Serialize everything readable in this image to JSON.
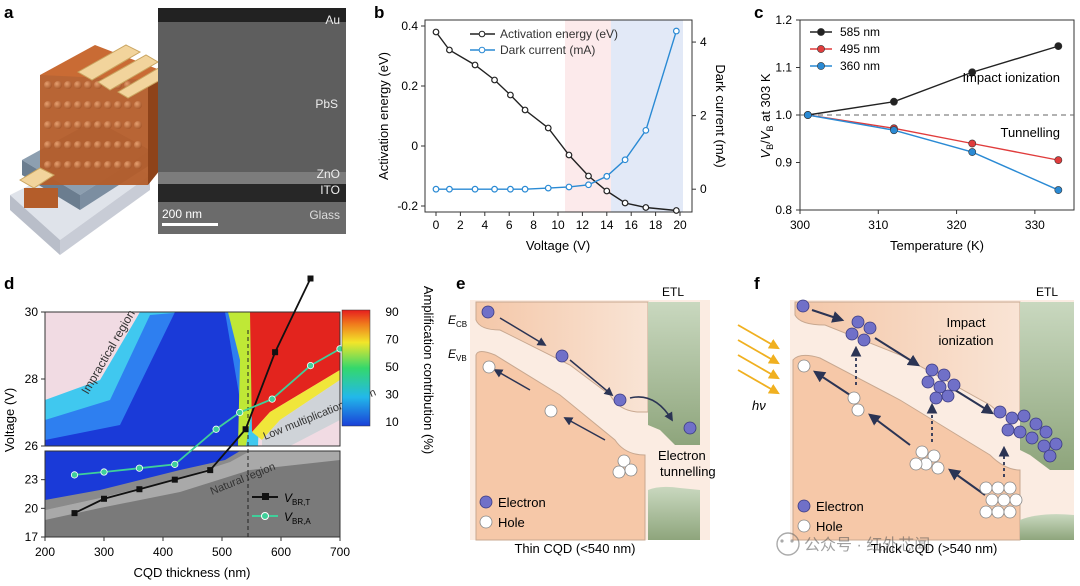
{
  "panels": {
    "a": {
      "letter": "a",
      "labels": {
        "au": "Au",
        "pbs": "PbS",
        "zno": "ZnO",
        "ito": "ITO",
        "glass": "Glass",
        "scale": "200 nm"
      }
    },
    "b": {
      "letter": "b"
    },
    "c": {
      "letter": "c"
    },
    "d": {
      "letter": "d",
      "region_labels": {
        "impractical": "Impractical region",
        "low": "Low multiplication region",
        "natural": "Natural region"
      },
      "colorbar": {
        "title": "Amplification contribution (%)",
        "ticks": [
          "90",
          "70",
          "50",
          "30",
          "10"
        ]
      }
    },
    "e": {
      "letter": "e",
      "etl": "ETL",
      "ecb": "E",
      "ecb_sub": "CB",
      "evb": "E",
      "evb_sub": "VB",
      "tunnelling": [
        "Electron",
        "tunnelling"
      ],
      "legend": {
        "electron": "Electron",
        "hole": "Hole"
      },
      "caption": "Thin CQD (<540 nm)"
    },
    "f": {
      "letter": "f",
      "etl": "ETL",
      "hv": "hν",
      "impact": [
        "Impact",
        "ionization"
      ],
      "legend": {
        "electron": "Electron",
        "hole": "Hole"
      },
      "caption": "Thick CQD (>540 nm)"
    }
  },
  "watermark": "公众号 · 红外芯闻",
  "colors": {
    "black": "#222222",
    "blue": "#2a8ad4",
    "red": "#e03c3c",
    "green": "#3fcf9a",
    "electron": "#7070c8"
  },
  "chart_data": [
    {
      "panel": "b",
      "type": "line",
      "xlabel": "Voltage (V)",
      "ylabel": "Activation energy (eV)",
      "y2label": "Dark current (mA)",
      "xlim": [
        0,
        20
      ],
      "ylim": [
        -0.22,
        0.42
      ],
      "y2lim": [
        -0.62,
        4.6
      ],
      "xticks": [
        0,
        2,
        4,
        6,
        8,
        10,
        12,
        14,
        16,
        18,
        20
      ],
      "yticks": [
        -0.2,
        0,
        0.2,
        0.4
      ],
      "y2ticks": [
        0,
        2,
        4
      ],
      "series": [
        {
          "name": "Activation energy (eV)",
          "axis": "left",
          "color": "#222222",
          "x": [
            0,
            1.1,
            3.2,
            4.8,
            6.1,
            7.3,
            9.2,
            10.9,
            12.5,
            14.0,
            15.5,
            17.2,
            19.7
          ],
          "y": [
            0.38,
            0.32,
            0.27,
            0.22,
            0.17,
            0.12,
            0.06,
            -0.03,
            -0.1,
            -0.15,
            -0.19,
            -0.205,
            -0.215
          ]
        },
        {
          "name": "Dark current (mA)",
          "axis": "right",
          "color": "#2a8ad4",
          "x": [
            0,
            1.1,
            3.2,
            4.8,
            6.1,
            7.3,
            9.2,
            10.9,
            12.5,
            14.0,
            15.5,
            17.2,
            19.7
          ],
          "y": [
            0.0,
            0.0,
            0.0,
            0.0,
            0.0,
            0.0,
            0.03,
            0.06,
            0.12,
            0.35,
            0.8,
            1.6,
            4.3
          ]
        }
      ]
    },
    {
      "panel": "c",
      "type": "line",
      "xlabel": "Temperature (K)",
      "ylabel": "V_B/V_B at 303 K",
      "xlim": [
        300,
        335
      ],
      "ylim": [
        0.8,
        1.2
      ],
      "xticks": [
        300,
        310,
        320,
        330
      ],
      "yticks": [
        0.8,
        0.9,
        1.0,
        1.1,
        1.2
      ],
      "annotations": [
        "Impact ionization",
        "Tunnelling"
      ],
      "series": [
        {
          "name": "585 nm",
          "color": "#222222",
          "x": [
            301,
            312,
            322,
            333
          ],
          "y": [
            1.0,
            1.028,
            1.09,
            1.145
          ]
        },
        {
          "name": "495 nm",
          "color": "#e03c3c",
          "x": [
            301,
            312,
            322,
            333
          ],
          "y": [
            1.0,
            0.972,
            0.94,
            0.905
          ]
        },
        {
          "name": "360 nm",
          "color": "#2a8ad4",
          "x": [
            301,
            312,
            322,
            333
          ],
          "y": [
            1.0,
            0.968,
            0.922,
            0.842
          ]
        }
      ]
    },
    {
      "panel": "d",
      "type": "line",
      "xlabel": "CQD thickness (nm)",
      "ylabel": "Voltage (V)",
      "xlim": [
        200,
        700
      ],
      "xticks": [
        200,
        300,
        400,
        500,
        600,
        700
      ],
      "yticks_upper": [
        26,
        28,
        30
      ],
      "yticks_lower": [
        17,
        20,
        23
      ],
      "vline": 540,
      "series": [
        {
          "name": "V_BR,T",
          "color": "#111111",
          "x": [
            250,
            300,
            360,
            420,
            480,
            540,
            590,
            650
          ],
          "y": [
            19.5,
            21.0,
            22.0,
            23.0,
            24.0,
            26.5,
            28.8,
            31.0
          ]
        },
        {
          "name": "V_BR,A",
          "color": "#3fcf9a",
          "x": [
            250,
            300,
            360,
            420,
            490,
            530,
            585,
            650,
            700
          ],
          "y": [
            23.5,
            23.8,
            24.2,
            24.6,
            26.5,
            27.0,
            27.4,
            28.4,
            28.9
          ]
        }
      ]
    }
  ]
}
